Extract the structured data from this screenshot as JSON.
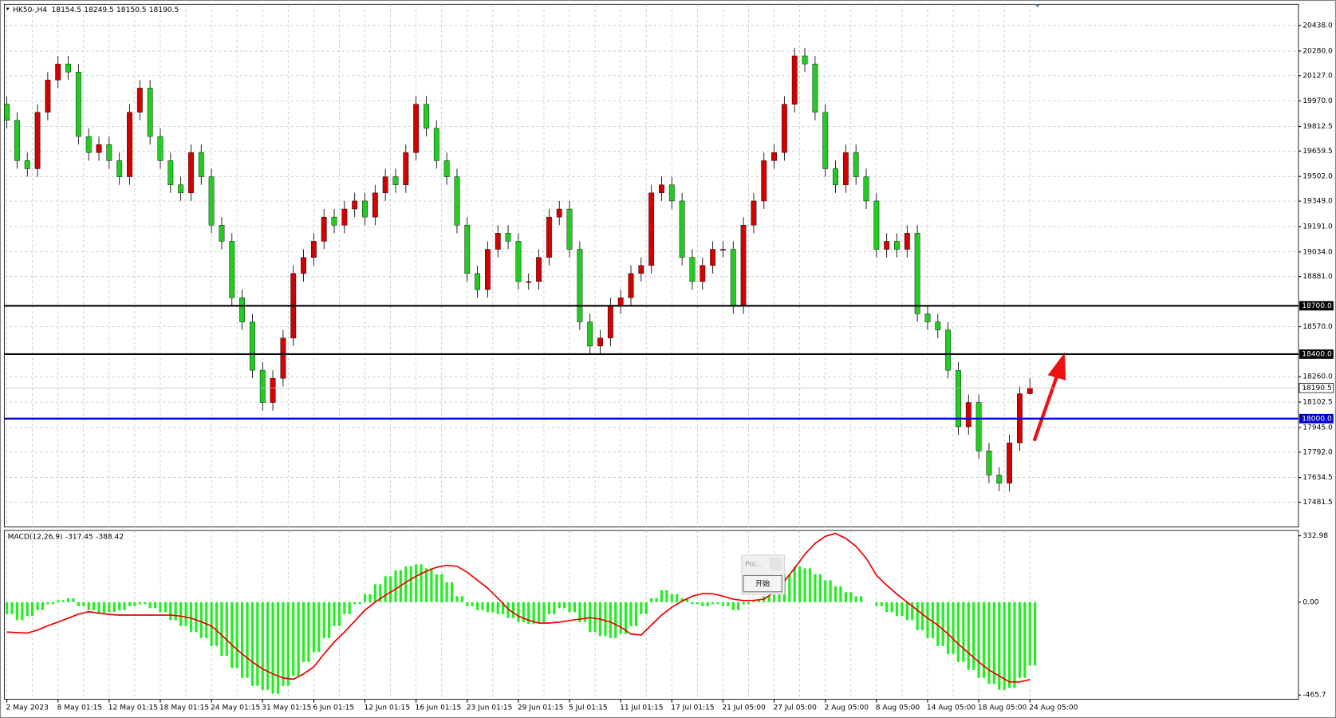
{
  "chart_data": [
    {
      "type": "candlestick",
      "title": "HK50-,H4",
      "categories": [
        "2 May 2023",
        null,
        null,
        null,
        null,
        "8 May 01:15",
        null,
        null,
        null,
        null,
        "12 May 01:15",
        null,
        null,
        null,
        null,
        "18 May 01:15",
        null,
        null,
        null,
        null,
        "24 May 01:15",
        null,
        null,
        null,
        null,
        "31 May 01:15",
        null,
        null,
        null,
        null,
        "6 Jun 01:15",
        null,
        null,
        null,
        null,
        "12 Jun 01:15",
        null,
        null,
        null,
        null,
        "16 Jun 01:15",
        null,
        null,
        null,
        null,
        "23 Jun 01:15",
        null,
        null,
        null,
        null,
        "29 Jun 01:15",
        null,
        null,
        null,
        null,
        "5 Jul 01:15",
        null,
        null,
        null,
        null,
        "11 Jul 01:15",
        null,
        null,
        null,
        null,
        "17 Jul 01:15",
        null,
        null,
        null,
        null,
        "21 Jul 05:00",
        null,
        null,
        null,
        null,
        "27 Jul 05:00",
        null,
        null,
        null,
        null,
        "2 Aug 05:00",
        null,
        null,
        null,
        null,
        "8 Aug 05:00",
        null,
        null,
        null,
        null,
        "14 Aug 05:00",
        null,
        null,
        null,
        null,
        "18 Aug 05:00",
        null,
        null,
        null,
        null,
        "24 Aug 05:00"
      ],
      "open": [
        19950,
        19850,
        19600,
        19550,
        19900,
        20100,
        20200,
        20150,
        19750,
        19650,
        19700,
        19600,
        19500,
        19900,
        20050,
        19750,
        19600,
        19450,
        19400,
        19650,
        19500,
        19200,
        19100,
        18750,
        18600,
        18300,
        18100,
        18250,
        18500,
        18900,
        19000,
        19100,
        19250,
        19200,
        19300,
        19350,
        19250,
        19400,
        19500,
        19450,
        19650,
        19950,
        19800,
        19600,
        19500,
        19200,
        18900,
        18800,
        19050,
        19150,
        19100,
        18850,
        18850,
        19000,
        19250,
        19300,
        19050,
        18600,
        18450,
        18500,
        18700,
        18750,
        18900,
        18950,
        19400,
        19450,
        19350,
        19000,
        18850,
        18950,
        19050,
        19050,
        18700,
        19200,
        19350,
        19600,
        19650,
        19950,
        20250,
        20200,
        19900,
        19550,
        19450,
        19650,
        19500,
        19350,
        19050,
        19100,
        19050,
        19150,
        18650,
        18600,
        18550,
        18300,
        17950,
        18100,
        17800,
        17650,
        17600,
        17850,
        18154.5
      ],
      "high": [
        20000,
        19900,
        19650,
        19950,
        20150,
        20250,
        20250,
        20200,
        19800,
        19750,
        19750,
        19650,
        19950,
        20100,
        20100,
        19800,
        19650,
        19500,
        19700,
        19700,
        19550,
        19250,
        19150,
        18800,
        18650,
        18350,
        18300,
        18550,
        18950,
        19050,
        19150,
        19300,
        19300,
        19350,
        19400,
        19400,
        19450,
        19550,
        19550,
        19700,
        20000,
        20000,
        19850,
        19650,
        19550,
        19250,
        18950,
        19100,
        19200,
        19200,
        19150,
        18900,
        19050,
        19300,
        19350,
        19350,
        19100,
        18650,
        18550,
        18750,
        18800,
        18950,
        19000,
        19450,
        19500,
        19500,
        19400,
        19050,
        19000,
        19100,
        19100,
        19100,
        19250,
        19400,
        19650,
        19700,
        20000,
        20300,
        20300,
        20250,
        19950,
        19600,
        19700,
        19700,
        19550,
        19400,
        19150,
        19150,
        19200,
        19200,
        18700,
        18650,
        18600,
        18350,
        18150,
        18150,
        17850,
        17700,
        17900,
        18200,
        18249.5
      ],
      "low": [
        19800,
        19550,
        19500,
        19500,
        19850,
        20050,
        20100,
        19700,
        19600,
        19600,
        19550,
        19450,
        19450,
        19850,
        19700,
        19550,
        19400,
        19350,
        19350,
        19450,
        19150,
        19050,
        18700,
        18550,
        18250,
        18050,
        18050,
        18200,
        18450,
        18850,
        18950,
        19050,
        19150,
        19150,
        19250,
        19200,
        19200,
        19350,
        19400,
        19400,
        19600,
        19750,
        19550,
        19450,
        19150,
        18850,
        18750,
        18750,
        19000,
        19050,
        18800,
        18800,
        18800,
        18950,
        19200,
        19000,
        18550,
        18400,
        18400,
        18450,
        18650,
        18700,
        18850,
        18900,
        19350,
        19300,
        18950,
        18800,
        18800,
        18900,
        19000,
        18650,
        18650,
        19150,
        19300,
        19550,
        19600,
        19900,
        20150,
        19850,
        19500,
        19400,
        19400,
        19450,
        19300,
        19000,
        19000,
        19000,
        19000,
        18600,
        18550,
        18500,
        18250,
        17900,
        17900,
        17750,
        17600,
        17550,
        17550,
        17800,
        18150.5
      ],
      "close": [
        19850,
        19600,
        19550,
        19900,
        20100,
        20200,
        20150,
        19750,
        19650,
        19700,
        19600,
        19500,
        19900,
        20050,
        19750,
        19600,
        19450,
        19400,
        19650,
        19500,
        19200,
        19100,
        18750,
        18600,
        18300,
        18100,
        18250,
        18500,
        18900,
        19000,
        19100,
        19250,
        19200,
        19300,
        19350,
        19250,
        19400,
        19500,
        19450,
        19650,
        19950,
        19800,
        19600,
        19500,
        19200,
        18900,
        18800,
        19050,
        19150,
        19100,
        18850,
        18850,
        19000,
        19250,
        19300,
        19050,
        18600,
        18450,
        18500,
        18700,
        18750,
        18900,
        18950,
        19400,
        19450,
        19350,
        19000,
        18850,
        18950,
        19050,
        19050,
        18700,
        19200,
        19350,
        19600,
        19650,
        19950,
        20250,
        20200,
        19900,
        19550,
        19450,
        19650,
        19500,
        19350,
        19050,
        19100,
        19050,
        19150,
        18650,
        18600,
        18550,
        18300,
        17950,
        18100,
        17800,
        17650,
        17600,
        17850,
        18154.5,
        18190.5
      ],
      "up_color": "#d40000",
      "down_color": "#22cc22",
      "ylim": [
        17328,
        20570
      ],
      "yticks": [
        {
          "value": 20438,
          "label": "20438.0"
        },
        {
          "value": 20280,
          "label": "20280.0"
        },
        {
          "value": 20127,
          "label": "20127.0"
        },
        {
          "value": 19970,
          "label": "19970.0"
        },
        {
          "value": 19812.5,
          "label": "19812.5"
        },
        {
          "value": 19659.5,
          "label": "19659.5"
        },
        {
          "value": 19502,
          "label": "19502.0"
        },
        {
          "value": 19349,
          "label": "19349.0"
        },
        {
          "value": 19191,
          "label": "19191.0"
        },
        {
          "value": 19034,
          "label": "19034.0"
        },
        {
          "value": 18881,
          "label": "18881.0"
        },
        {
          "value": 18570,
          "label": "18570.0"
        },
        {
          "value": 18260,
          "label": "18260.0"
        },
        {
          "value": 18102.5,
          "label": "18102.5"
        },
        {
          "value": 17945,
          "label": "17945.0"
        },
        {
          "value": 17792,
          "label": "17792.0"
        },
        {
          "value": 17634.5,
          "label": "17634.5"
        },
        {
          "value": 17481.5,
          "label": "17481.5"
        }
      ],
      "hlines": [
        {
          "value": 18700,
          "label": "18700.0",
          "color": "#000000"
        },
        {
          "value": 18400,
          "label": "18400.0",
          "color": "#000000"
        },
        {
          "value": 18000,
          "label": "18000.0",
          "color": "#0000cc"
        }
      ],
      "grid": true
    },
    {
      "type": "macd",
      "title": "MACD(12,26,9)",
      "histogram": {
        "color": "#22ee22",
        "values": [
          -60,
          -90,
          -70,
          -40,
          -10,
          10,
          20,
          -20,
          -40,
          -60,
          -50,
          -40,
          -20,
          -10,
          -30,
          -50,
          -90,
          -120,
          -150,
          -180,
          -220,
          -270,
          -330,
          -380,
          -420,
          -440,
          -460,
          -420,
          -370,
          -300,
          -250,
          -180,
          -120,
          -60,
          -10,
          40,
          90,
          130,
          160,
          180,
          190,
          170,
          140,
          100,
          30,
          -20,
          -40,
          -50,
          -60,
          -80,
          -100,
          -110,
          -100,
          -60,
          -30,
          -50,
          -100,
          -150,
          -170,
          -180,
          -160,
          -120,
          -60,
          20,
          60,
          40,
          20,
          -10,
          -20,
          -10,
          -20,
          -40,
          -10,
          10,
          30,
          90,
          140,
          180,
          170,
          140,
          110,
          80,
          50,
          30,
          0,
          -20,
          -50,
          -70,
          -90,
          -140,
          -180,
          -220,
          -260,
          -300,
          -340,
          -380,
          -410,
          -440,
          -430,
          -380,
          -317.45
        ]
      },
      "signal": {
        "color": "#ee0000",
        "values": [
          -150,
          -153,
          -155,
          -140,
          -118,
          -100,
          -80,
          -60,
          -48,
          -55,
          -62,
          -65,
          -65,
          -65,
          -65,
          -65,
          -65,
          -70,
          -80,
          -98,
          -120,
          -165,
          -215,
          -260,
          -300,
          -335,
          -360,
          -380,
          -387,
          -360,
          -325,
          -260,
          -200,
          -150,
          -95,
          -40,
          0,
          35,
          65,
          100,
          130,
          155,
          175,
          185,
          180,
          150,
          110,
          70,
          20,
          -35,
          -70,
          -90,
          -105,
          -105,
          -100,
          -92,
          -85,
          -78,
          -85,
          -100,
          -125,
          -160,
          -165,
          -115,
          -65,
          -25,
          5,
          30,
          43,
          42,
          30,
          15,
          8,
          9,
          15,
          50,
          105,
          170,
          240,
          295,
          330,
          345,
          320,
          280,
          220,
          135,
          85,
          40,
          0,
          -40,
          -80,
          -115,
          -160,
          -210,
          -255,
          -300,
          -340,
          -370,
          -400,
          -400,
          -388.42
        ]
      },
      "ylim": [
        -487,
        360
      ],
      "yticks": [
        {
          "value": 332.98,
          "label": "332.98"
        },
        {
          "value": 0,
          "label": "0.00"
        },
        {
          "value": -465.7,
          "label": "-465.7"
        }
      ]
    }
  ],
  "dialog": {
    "title": "Poi...",
    "button": "开始"
  }
}
